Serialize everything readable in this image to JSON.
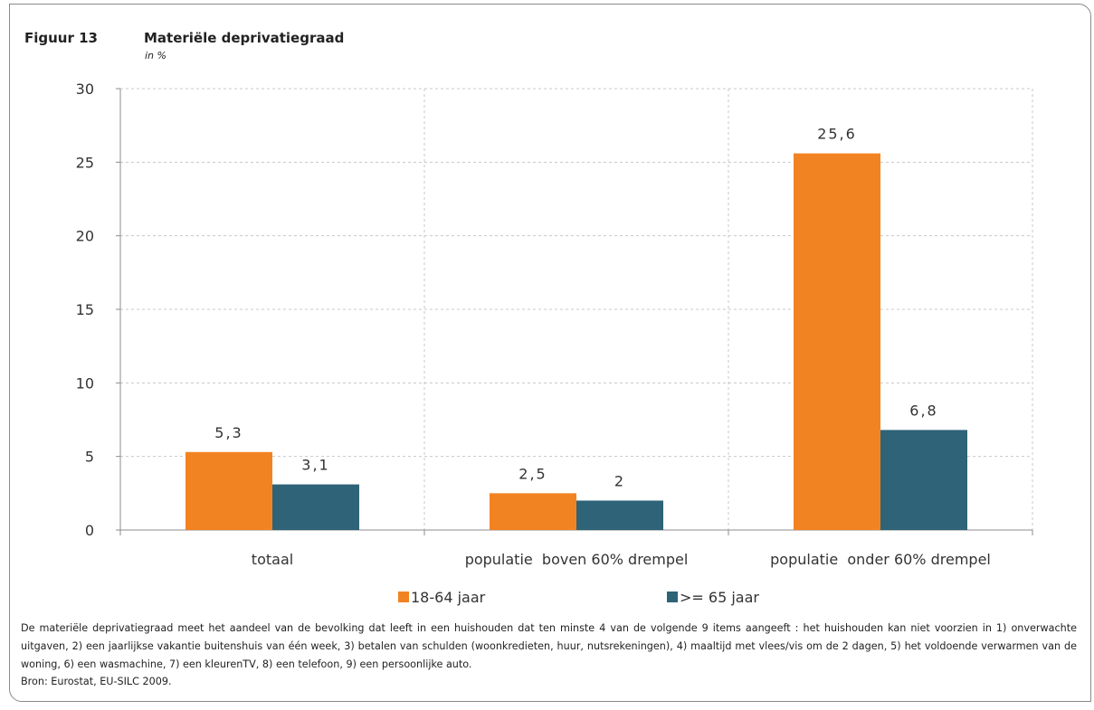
{
  "figure": {
    "number": "Figuur 13",
    "title": "Materiële deprivatiegraad",
    "unit": "in %"
  },
  "chart_data": {
    "type": "bar",
    "categories": [
      "totaal",
      "populatie  boven 60% drempel",
      "populatie  onder 60% drempel"
    ],
    "series": [
      {
        "name": "18-64 jaar",
        "color": "#f28322",
        "values": [
          5.3,
          2.5,
          25.6
        ],
        "labels": [
          "5,3",
          "2,5",
          "25,6"
        ]
      },
      {
        "name": ">= 65 jaar",
        "color": "#2e6378",
        "values": [
          3.1,
          2.0,
          6.8
        ],
        "labels": [
          "3,1",
          "2",
          "6,8"
        ]
      }
    ],
    "ylim": [
      0,
      30
    ],
    "yticks": [
      0,
      5,
      10,
      15,
      20,
      25,
      30
    ],
    "grid": true,
    "legend": "bottom"
  },
  "footnote": "De materiële deprivatiegraad meet het aandeel van de bevolking dat leeft in een huishouden dat ten minste 4 van de volgende 9 items aangeeft : het huishouden kan niet voorzien in 1) onverwachte uitgaven, 2) een jaarlijkse vakantie buitenshuis van één week, 3) betalen van schulden (woonkredieten, huur, nutsrekeningen), 4) maaltijd met vlees/vis om de 2 dagen, 5) het voldoende verwarmen van de woning, 6) een wasmachine, 7) een kleurenTV, 8) een telefoon, 9) een persoonlijke auto.",
  "source": "Bron: Eurostat, EU-SILC 2009."
}
